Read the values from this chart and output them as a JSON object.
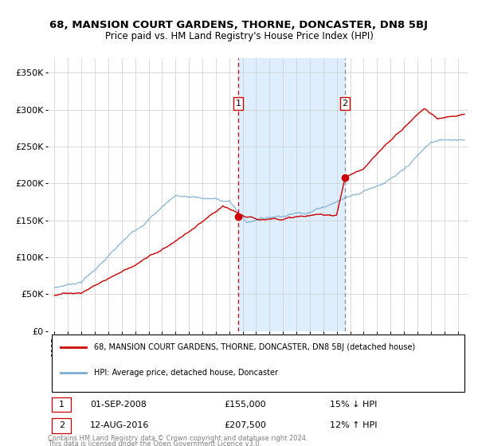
{
  "title1": "68, MANSION COURT GARDENS, THORNE, DONCASTER, DN8 5BJ",
  "title2": "Price paid vs. HM Land Registry's House Price Index (HPI)",
  "legend_line1": "68, MANSION COURT GARDENS, THORNE, DONCASTER, DN8 5BJ (detached house)",
  "legend_line2": "HPI: Average price, detached house, Doncaster",
  "annotation1": {
    "label": "1",
    "date": "01-SEP-2008",
    "price": "£155,000",
    "note": "15% ↓ HPI",
    "x_year": 2008.67,
    "y_val": 155000
  },
  "annotation2": {
    "label": "2",
    "date": "12-AUG-2016",
    "price": "£207,500",
    "note": "12% ↑ HPI",
    "x_year": 2016.62,
    "y_val": 207500
  },
  "red_line_color": "#cc0000",
  "blue_line_color": "#7aadcf",
  "shade_color": "#ddeeff",
  "grid_color": "#cccccc",
  "background_color": "#ffffff",
  "ylim": [
    0,
    370000
  ],
  "yticks": [
    0,
    50000,
    100000,
    150000,
    200000,
    250000,
    300000,
    350000
  ],
  "ytick_labels": [
    "£0",
    "£50K",
    "£100K",
    "£150K",
    "£200K",
    "£250K",
    "£300K",
    "£350K"
  ],
  "xlim_start": 1994.5,
  "xlim_end": 2025.8,
  "footer1": "Contains HM Land Registry data © Crown copyright and database right 2024.",
  "footer2": "This data is licensed under the Open Government Licence v3.0."
}
